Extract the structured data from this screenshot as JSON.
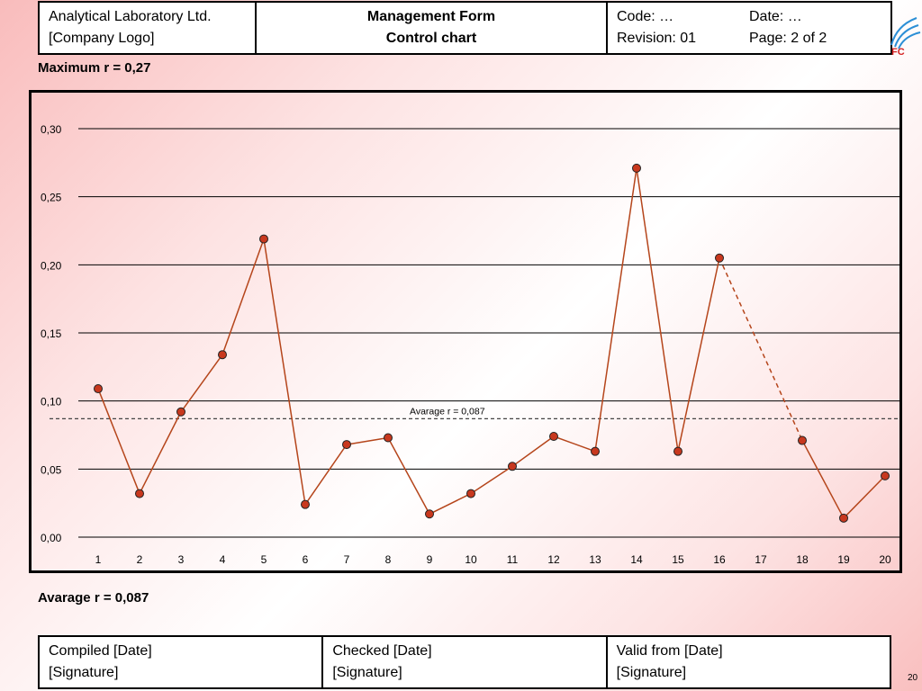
{
  "header": {
    "company": "Analytical Laboratory Ltd.",
    "logo": "[Company Logo]",
    "form_type": "Management Form",
    "form_title": "Control chart",
    "code": "Code: …",
    "date": "Date: …",
    "revision": "Revision: 01",
    "page": "Page: 2 of 2",
    "brand_mark": "FC"
  },
  "max_label": "Maximum r = 0,27",
  "avg_label": "Avarage r = 0,087",
  "chart_data": {
    "type": "line",
    "x": [
      1,
      2,
      3,
      4,
      5,
      6,
      7,
      8,
      9,
      10,
      11,
      12,
      13,
      14,
      15,
      16,
      17,
      18,
      19,
      20
    ],
    "series": [
      {
        "values": [
          0.109,
          0.032,
          0.092,
          0.134,
          0.219,
          0.024,
          0.068,
          0.073,
          0.017,
          0.032,
          0.052,
          0.074,
          0.063,
          0.271,
          0.063,
          0.205,
          null,
          0.071,
          0.014,
          0.045
        ]
      }
    ],
    "ylim": [
      0,
      0.3
    ],
    "yticks": [
      "0,00",
      "0,05",
      "0,10",
      "0,15",
      "0,20",
      "0,25",
      "0,30"
    ],
    "xticks": [
      "1",
      "2",
      "3",
      "4",
      "5",
      "6",
      "7",
      "8",
      "9",
      "10",
      "11",
      "12",
      "13",
      "14",
      "15",
      "16",
      "17",
      "18",
      "19",
      "20"
    ],
    "reference_line": {
      "value": 0.087,
      "label": "Avarage r = 0,087"
    },
    "gap_bridge": [
      16,
      18
    ],
    "grid": true,
    "line_color": "#b5451b",
    "marker_color": "#c8381e"
  },
  "footer": {
    "compiled": "Compiled [Date]",
    "checked": "Checked [Date]",
    "valid": "Valid from [Date]",
    "signature": "[Signature]"
  },
  "page_number": "20"
}
